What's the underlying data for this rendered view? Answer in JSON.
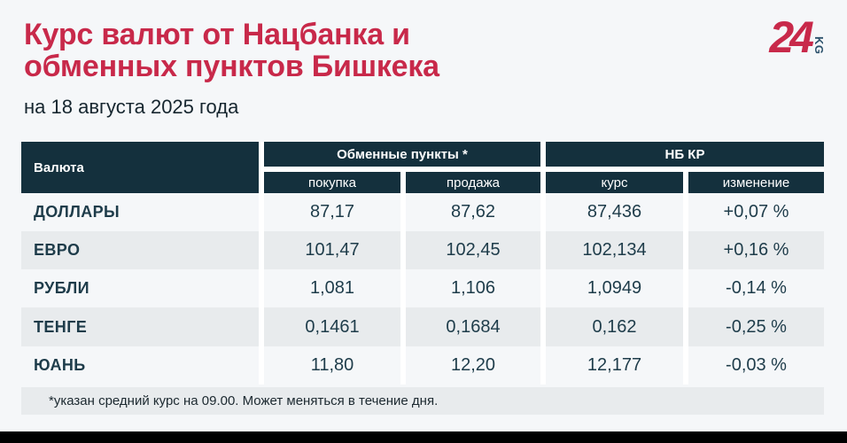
{
  "header": {
    "title_line1": "Курс валют от Нацбанка и",
    "title_line2": "обменных пунктов Бишкека",
    "date": "на 18 августа 2025 года"
  },
  "logo": {
    "number": "24",
    "suffix": "KG",
    "red": "#c8294a",
    "blue": "#2b516b"
  },
  "chart_data": {
    "type": "table",
    "title": "Курс валют от Нацбанка и обменных пунктов Бишкека",
    "subtitle": "на 18 августа 2025 года",
    "column_groups": [
      "Обменные пункты *",
      "НБ КР"
    ],
    "columns": [
      "Валюта",
      "покупка",
      "продажа",
      "курс",
      "изменение"
    ],
    "rows": [
      [
        "ДОЛЛАРЫ",
        "87,17",
        "87,62",
        "87,436",
        "+0,07 %"
      ],
      [
        "ЕВРО",
        "101,47",
        "102,45",
        "102,134",
        "+0,16 %"
      ],
      [
        "РУБЛИ",
        "1,081",
        "1,106",
        "1,0949",
        "-0,14 %"
      ],
      [
        "ТЕНГЕ",
        "0,1461",
        "0,1684",
        "0,162",
        "-0,25 %"
      ],
      [
        "ЮАНЬ",
        "11,80",
        "12,20",
        "12,177",
        "-0,03 %"
      ]
    ]
  },
  "footnote": "*указан средний курс на 09.00. Может меняться в течение дня.",
  "colors": {
    "accent_red": "#c8294a",
    "header_dark": "#14303d",
    "text_dark": "#1e3c4a",
    "row_alt": "#e8ebed",
    "page_bg": "#f5f7f9",
    "bottom_bar": "#000000"
  }
}
